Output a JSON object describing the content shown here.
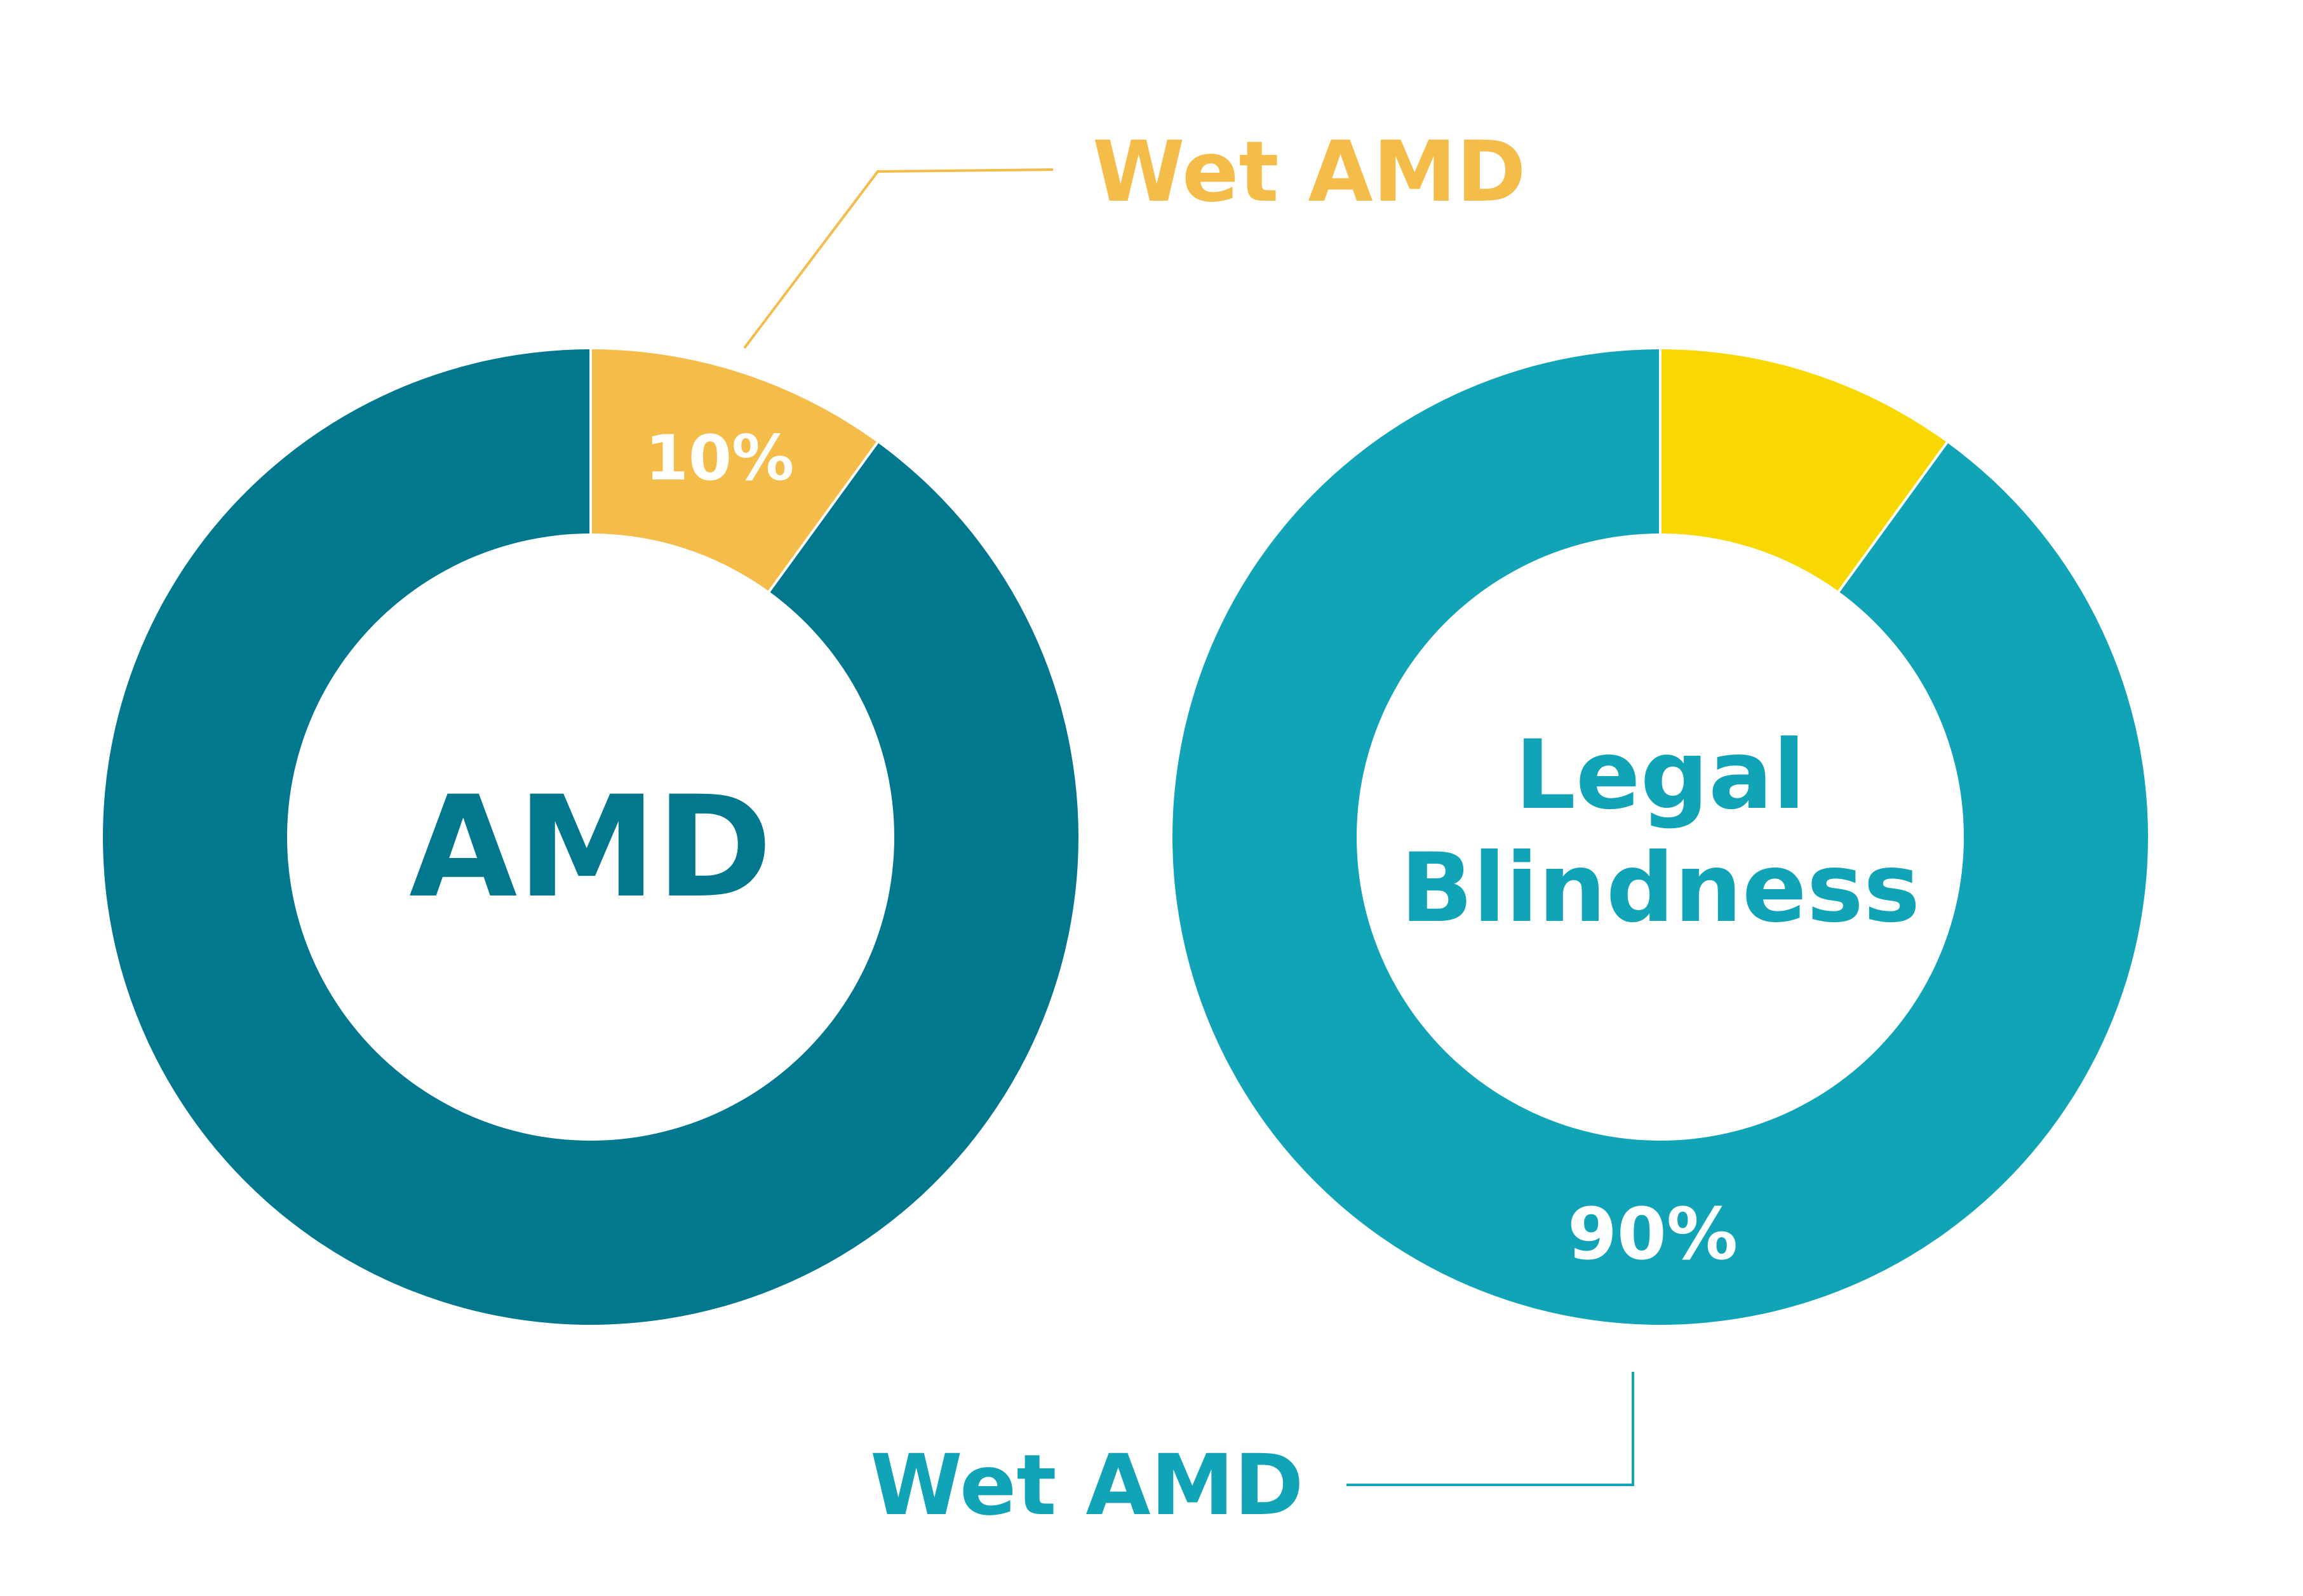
{
  "colors": {
    "left_major": "#02788F",
    "left_minor": "#F4BC48",
    "right_major": "#10A4B6",
    "right_minor": "#F8D800",
    "white": "#FFFFFF"
  },
  "chart_data": [
    {
      "type": "pie",
      "variant": "donut",
      "center_label": [
        "AMD"
      ],
      "categories": [
        "Wet AMD",
        ""
      ],
      "values": [
        10,
        90
      ],
      "data_labels": [
        "10%",
        ""
      ],
      "callout": "Wet AMD",
      "colors": [
        "#F4BC48",
        "#02788F"
      ]
    },
    {
      "type": "pie",
      "variant": "donut",
      "center_label": [
        "Legal",
        "Blindness"
      ],
      "categories": [
        "",
        "Wet AMD"
      ],
      "values": [
        10,
        90
      ],
      "data_labels": [
        "",
        "90%"
      ],
      "callout": "Wet AMD",
      "colors": [
        "#F8D800",
        "#10A4B6"
      ]
    }
  ]
}
